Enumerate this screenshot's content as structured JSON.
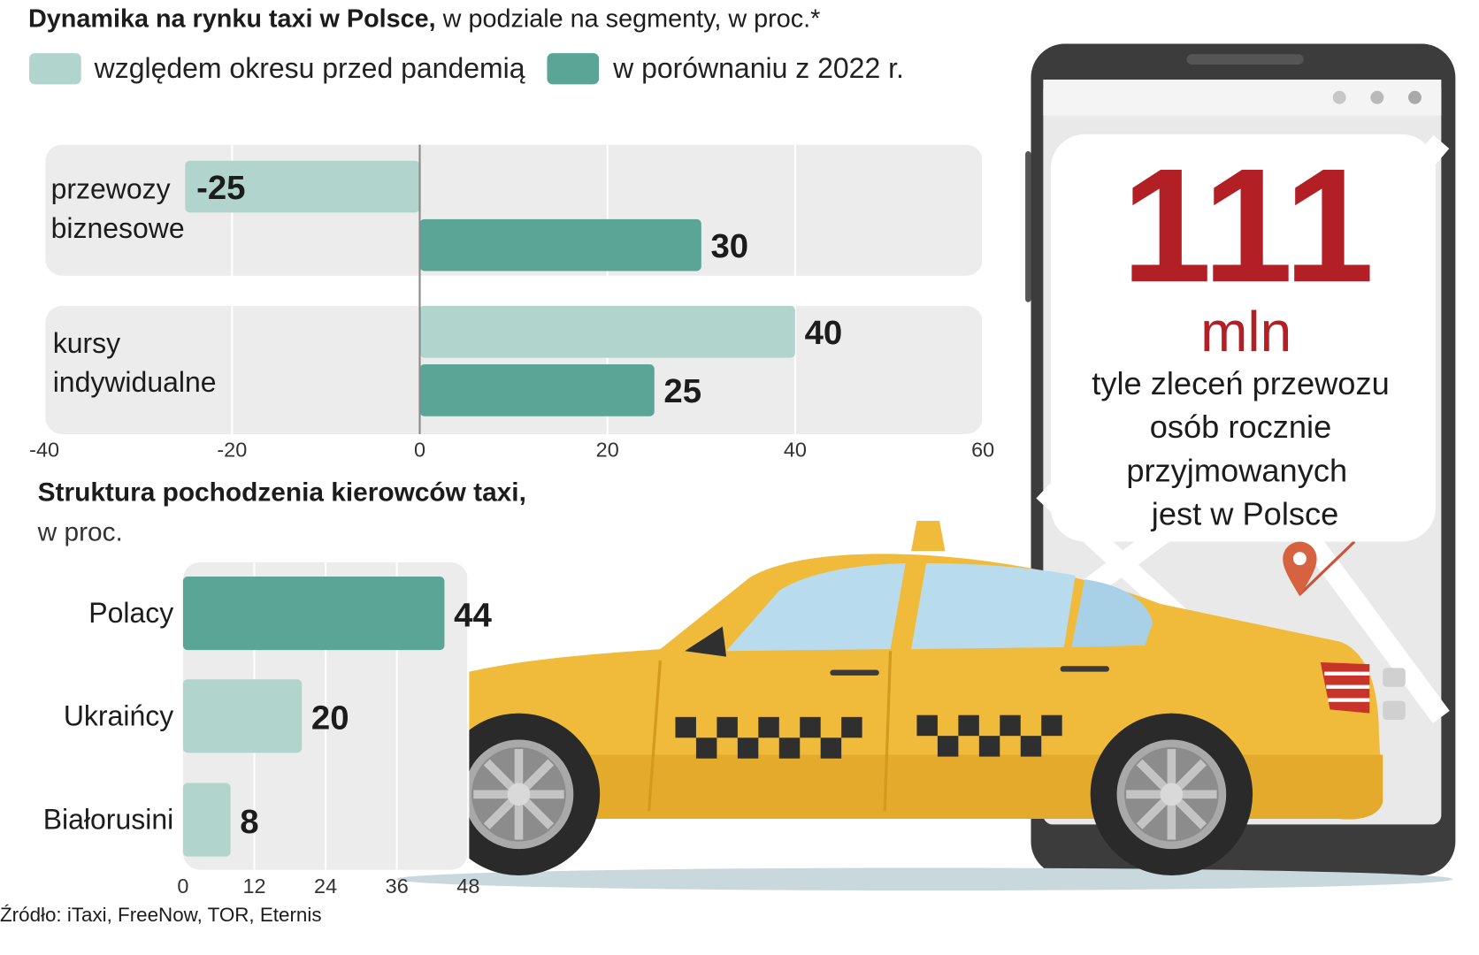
{
  "header": {
    "title_bold": "Dynamika na rynku taxi w Polsce,",
    "title_rest": " w podziale na segmenty, w proc.*"
  },
  "legend": [
    {
      "label": "względem okresu przed pandemią",
      "color": "#b1d4cd"
    },
    {
      "label": "w porównaniu z 2022 r.",
      "color": "#5aa596"
    }
  ],
  "chart_data": [
    {
      "type": "bar",
      "orientation": "horizontal",
      "title": "Dynamika na rynku taxi w Polsce, w podziale na segmenty, w proc.*",
      "categories": [
        [
          "przewozy",
          "biznesowe"
        ],
        [
          "kursy",
          "indywidualne"
        ]
      ],
      "series": [
        {
          "name": "względem okresu przed pandemią",
          "values": [
            -25,
            40
          ],
          "color": "#b1d4cd"
        },
        {
          "name": "w porównaniu z 2022 r.",
          "values": [
            30,
            25
          ],
          "color": "#5aa596"
        }
      ],
      "value_labels": [
        [
          "-25",
          "30"
        ],
        [
          "40",
          "25"
        ]
      ],
      "xlim": [
        -40,
        60
      ],
      "ticks": [
        -40,
        -20,
        0,
        20,
        40,
        60
      ],
      "tick_labels": [
        "-40",
        "-20",
        "0",
        "20",
        "40",
        "60"
      ],
      "grid": true,
      "legend": "top"
    },
    {
      "type": "bar",
      "orientation": "horizontal",
      "title_bold": "Struktura pochodzenia kierowców taxi,",
      "subtitle": "w proc.",
      "categories": [
        "Polacy",
        "Ukraińcy",
        "Białorusini"
      ],
      "values": [
        44,
        20,
        8
      ],
      "value_labels": [
        "44",
        "20",
        "8"
      ],
      "colors": [
        "#5aa596",
        "#b1d4cd",
        "#b1d4cd"
      ],
      "xlim": [
        0,
        48
      ],
      "ticks": [
        0,
        12,
        24,
        36,
        48
      ],
      "tick_labels": [
        "0",
        "12",
        "24",
        "36",
        "48"
      ],
      "grid": true
    }
  ],
  "phone_card": {
    "number": "111",
    "unit": "mln",
    "lines": [
      "tyle zleceń przewozu",
      "osób rocznie",
      "przyjmowanych",
      "jest w Polsce"
    ],
    "accent": "#b21f25"
  },
  "source": "Źródło: iTaxi, FreeNow, TOR, Eternis"
}
